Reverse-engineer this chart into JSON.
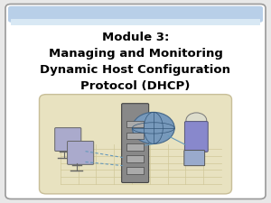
{
  "title_line1": "Module 3:",
  "title_line2": "Managing and Monitoring",
  "title_line3": "Dynamic Host Configuration",
  "title_line4": "Protocol (DHCP)",
  "bg_color": "#e8e8e8",
  "slide_bg": "#ffffff",
  "header_color1": "#b8cfe8",
  "header_color2": "#d8e8f4",
  "title_color": "#000000",
  "title_fontsize": 9.5,
  "border_color": "#999999",
  "image_bg": "#e8e2c0",
  "image_border": "#c8be98",
  "grid_color": "#d0c898",
  "figsize": [
    3.0,
    2.25
  ],
  "dpi": 100
}
